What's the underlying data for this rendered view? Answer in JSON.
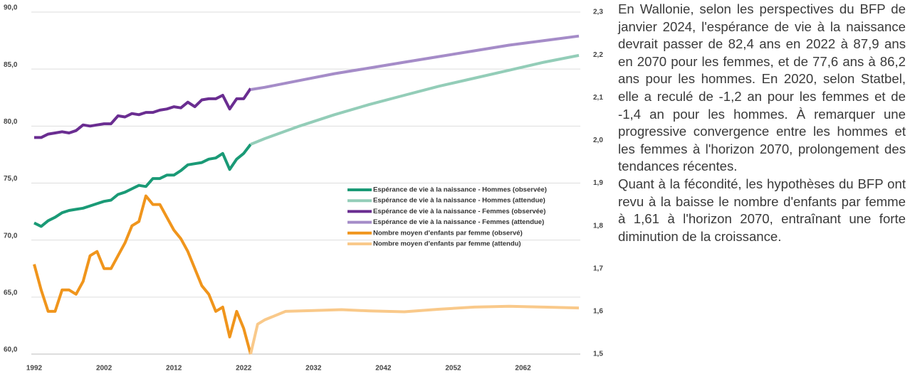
{
  "chart_data": {
    "type": "line",
    "xlim": [
      1992,
      2070
    ],
    "xticks": [
      1992,
      2002,
      2012,
      2022,
      2032,
      2042,
      2052,
      2062
    ],
    "ylim": [
      60,
      90
    ],
    "yticks": [
      {
        "value": 60,
        "label": "60,0"
      },
      {
        "value": 65,
        "label": "65,0"
      },
      {
        "value": 70,
        "label": "70,0"
      },
      {
        "value": 75,
        "label": "75,0"
      },
      {
        "value": 80,
        "label": "80,0"
      },
      {
        "value": 85,
        "label": "85,0"
      },
      {
        "value": 90,
        "label": "90,0"
      }
    ],
    "y2lim": [
      1.5,
      2.3
    ],
    "y2ticks": [
      {
        "value": 1.5,
        "label": "1,5"
      },
      {
        "value": 1.6,
        "label": "1,6"
      },
      {
        "value": 1.7,
        "label": "1,7"
      },
      {
        "value": 1.8,
        "label": "1,8"
      },
      {
        "value": 1.9,
        "label": "1,9"
      },
      {
        "value": 2.0,
        "label": "2,0"
      },
      {
        "value": 2.1,
        "label": "2,1"
      },
      {
        "value": 2.2,
        "label": "2,2"
      },
      {
        "value": 2.3,
        "label": "2,3"
      }
    ],
    "grid": true,
    "series": [
      {
        "name": "Espérance de vie à la naissance - Hommes (observée)",
        "color": "#1a9a76",
        "x": [
          1992,
          1993,
          1994,
          1995,
          1996,
          1997,
          1998,
          1999,
          2000,
          2001,
          2002,
          2003,
          2004,
          2005,
          2006,
          2007,
          2008,
          2009,
          2010,
          2011,
          2012,
          2013,
          2014,
          2015,
          2016,
          2017,
          2018,
          2019,
          2020,
          2021,
          2022,
          2023
        ],
        "values": [
          71.5,
          71.2,
          71.7,
          72.0,
          72.4,
          72.6,
          72.7,
          72.8,
          73.0,
          73.2,
          73.4,
          73.5,
          74.0,
          74.2,
          74.5,
          74.8,
          74.7,
          75.4,
          75.4,
          75.7,
          75.7,
          76.1,
          76.6,
          76.7,
          76.8,
          77.1,
          77.2,
          77.6,
          76.2,
          77.1,
          77.6,
          78.4
        ]
      },
      {
        "name": "Espérance de vie à la naissance - Hommes (attendue)",
        "color": "#93cdb8",
        "x": [
          2023,
          2025,
          2030,
          2035,
          2040,
          2045,
          2050,
          2055,
          2060,
          2065,
          2070
        ],
        "values": [
          78.4,
          78.9,
          80.0,
          81.0,
          81.9,
          82.7,
          83.5,
          84.2,
          84.9,
          85.6,
          86.2
        ]
      },
      {
        "name": "Espérance de vie à la naissance - Femmes (observée)",
        "color": "#6a2d91",
        "x": [
          1992,
          1993,
          1994,
          1995,
          1996,
          1997,
          1998,
          1999,
          2000,
          2001,
          2002,
          2003,
          2004,
          2005,
          2006,
          2007,
          2008,
          2009,
          2010,
          2011,
          2012,
          2013,
          2014,
          2015,
          2016,
          2017,
          2018,
          2019,
          2020,
          2021,
          2022,
          2023
        ],
        "values": [
          79.0,
          79.0,
          79.3,
          79.4,
          79.5,
          79.4,
          79.6,
          80.1,
          80.0,
          80.1,
          80.2,
          80.2,
          80.9,
          80.8,
          81.1,
          81.0,
          81.2,
          81.2,
          81.4,
          81.5,
          81.7,
          81.6,
          82.1,
          81.7,
          82.3,
          82.4,
          82.4,
          82.7,
          81.5,
          82.4,
          82.4,
          83.3
        ]
      },
      {
        "name": "Espérance de vie à la naissance - Femmes (attendue)",
        "color": "#a58cc8",
        "x": [
          2023,
          2025,
          2030,
          2035,
          2040,
          2045,
          2050,
          2055,
          2060,
          2065,
          2070
        ],
        "values": [
          83.2,
          83.4,
          84.0,
          84.6,
          85.1,
          85.6,
          86.1,
          86.6,
          87.1,
          87.5,
          87.9
        ]
      },
      {
        "name": "Nombre moyen d'enfants par femme (observé)",
        "color": "#f0951c",
        "axis": "y2",
        "x": [
          1992,
          1993,
          1994,
          1995,
          1996,
          1997,
          1998,
          1999,
          2000,
          2001,
          2002,
          2003,
          2004,
          2005,
          2006,
          2007,
          2008,
          2009,
          2010,
          2011,
          2012,
          2013,
          2014,
          2015,
          2016,
          2017,
          2018,
          2019,
          2020,
          2021,
          2022,
          2023
        ],
        "values": [
          1.71,
          1.65,
          1.6,
          1.6,
          1.65,
          1.65,
          1.64,
          1.67,
          1.73,
          1.74,
          1.7,
          1.7,
          1.73,
          1.76,
          1.8,
          1.81,
          1.87,
          1.85,
          1.85,
          1.82,
          1.79,
          1.77,
          1.74,
          1.7,
          1.66,
          1.64,
          1.6,
          1.61,
          1.54,
          1.6,
          1.56,
          1.5
        ]
      },
      {
        "name": "Nombre moyen d'enfants par femme (attendu)",
        "color": "#f9c98a",
        "axis": "y2",
        "x": [
          2023,
          2024,
          2025,
          2028,
          2032,
          2036,
          2040,
          2045,
          2050,
          2055,
          2060,
          2065,
          2070
        ],
        "values": [
          1.5,
          1.57,
          1.58,
          1.6,
          1.602,
          1.604,
          1.601,
          1.599,
          1.605,
          1.61,
          1.612,
          1.61,
          1.608
        ]
      }
    ],
    "legend": "center-right"
  },
  "text": {
    "paragraphs": [
      "En Wallonie, selon les perspectives du BFP de janvier 2024, l'espérance de vie à la naissance devrait passer de 82,4 ans en 2022 à 87,9 ans en 2070 pour les femmes, et de 77,6 ans à 86,2 ans pour les hommes. En 2020, selon Statbel, elle a reculé de -1,2 an pour les femmes et de -1,4 an pour les hommes. À remarquer une progressive convergence entre les hommes et les femmes à l'horizon 2070, prolongement des tendances récentes.",
      "Quant à la fécondité, les hypothèses du BFP ont revu à la baisse le nombre d'enfants par femme à 1,61 à l'horizon 2070, entraînant une forte diminution de la croissance."
    ]
  }
}
